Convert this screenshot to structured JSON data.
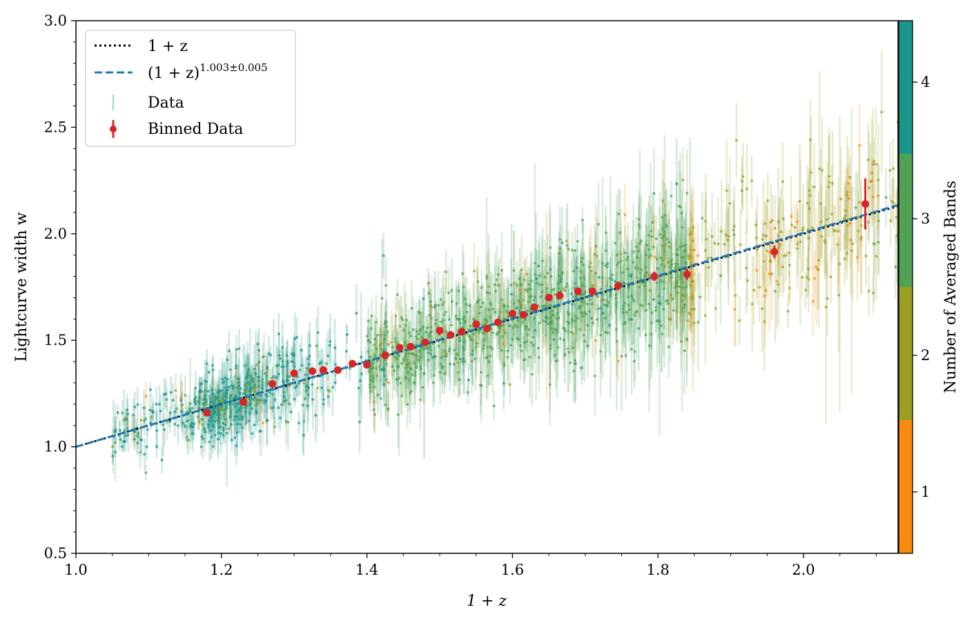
{
  "chart_data": {
    "type": "scatter",
    "xlabel": "1 + z",
    "ylabel": "Lightcurve width w",
    "xlim": [
      1.0,
      2.13
    ],
    "ylim": [
      0.5,
      3.0
    ],
    "x_ticks": [
      1.0,
      1.2,
      1.4,
      1.6,
      1.8,
      2.0
    ],
    "x_tick_labels": [
      "1.0",
      "1.2",
      "1.4",
      "1.6",
      "1.8",
      "2.0"
    ],
    "y_ticks": [
      0.5,
      1.0,
      1.5,
      2.0,
      2.5,
      3.0
    ],
    "y_tick_labels": [
      "0.5",
      "1.0",
      "1.5",
      "2.0",
      "2.5",
      "3.0"
    ],
    "legend": {
      "position": "top-left",
      "entries": [
        {
          "key": "model_1pz",
          "label": "1 + z",
          "style": "dotted",
          "color": "#000000"
        },
        {
          "key": "model_fit",
          "label": "(1 + z)",
          "superscript": "1.003±0.005",
          "style": "dashed",
          "color": "#1f77b4"
        },
        {
          "key": "data",
          "label": "Data",
          "style": "errorbar-faint",
          "color": "#1a968c"
        },
        {
          "key": "binned",
          "label": "Binned Data",
          "style": "errorbar-point",
          "color": "#d62728"
        }
      ]
    },
    "model_lines": [
      {
        "name": "1 + z",
        "exponent": 1.0,
        "x_range": [
          1.0,
          2.13
        ]
      },
      {
        "name": "(1 + z)^1.003±0.005",
        "exponent": 1.003,
        "x_range": [
          1.0,
          2.13
        ]
      }
    ],
    "binned_data": {
      "name": "Binned Data",
      "x": [
        1.18,
        1.23,
        1.27,
        1.3,
        1.325,
        1.34,
        1.36,
        1.38,
        1.4,
        1.425,
        1.445,
        1.46,
        1.48,
        1.5,
        1.515,
        1.53,
        1.55,
        1.565,
        1.58,
        1.6,
        1.615,
        1.63,
        1.65,
        1.665,
        1.69,
        1.71,
        1.745,
        1.795,
        1.84,
        1.96,
        2.085
      ],
      "y": [
        1.16,
        1.21,
        1.295,
        1.345,
        1.355,
        1.36,
        1.36,
        1.39,
        1.385,
        1.43,
        1.465,
        1.47,
        1.49,
        1.545,
        1.525,
        1.54,
        1.575,
        1.555,
        1.585,
        1.625,
        1.62,
        1.655,
        1.7,
        1.71,
        1.73,
        1.73,
        1.755,
        1.8,
        1.81,
        1.915,
        2.14
      ],
      "yerr": [
        0.012,
        0.012,
        0.012,
        0.01,
        0.01,
        0.01,
        0.01,
        0.01,
        0.01,
        0.01,
        0.01,
        0.01,
        0.01,
        0.012,
        0.012,
        0.012,
        0.014,
        0.012,
        0.014,
        0.014,
        0.014,
        0.016,
        0.016,
        0.018,
        0.018,
        0.018,
        0.02,
        0.022,
        0.026,
        0.03,
        0.12
      ]
    },
    "scatter_data": {
      "name": "Data",
      "description_of_distribution": "~2000 individual SN points with error bars, colored by number of averaged bands",
      "mean_relation": "w = 1+z",
      "x_range": [
        1.05,
        2.13
      ],
      "color_by": "Number of Averaged Bands"
    },
    "colorbar": {
      "label": "Number of Averaged Bands",
      "range": [
        0.55,
        4.45
      ],
      "ticks": [
        1,
        2,
        3,
        4
      ],
      "tick_labels": [
        "1",
        "2",
        "3",
        "4"
      ],
      "bins": [
        {
          "from": 0.55,
          "to": 1.525,
          "color": "#fb8b0e"
        },
        {
          "from": 1.525,
          "to": 2.5,
          "color": "#9c9f24"
        },
        {
          "from": 2.5,
          "to": 3.475,
          "color": "#52a256"
        },
        {
          "from": 3.475,
          "to": 4.45,
          "color": "#1a968c"
        }
      ]
    }
  }
}
